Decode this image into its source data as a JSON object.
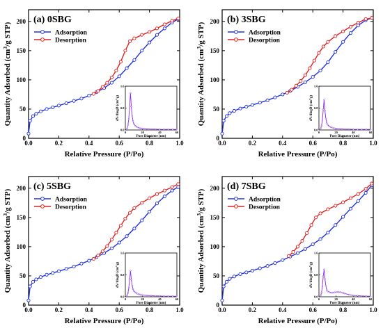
{
  "chart_data": [
    {
      "type": "line",
      "label": "(a) 0SBG",
      "xlabel": "Relative Pressure (P/Po)",
      "ylabel": "Quantity Adsorbed (cm³/g STP)",
      "xlim": [
        0,
        1.0
      ],
      "ylim": [
        0,
        220
      ],
      "xticks": [
        "0.0",
        "0.2",
        "0.4",
        "0.6",
        "0.8",
        "1.0"
      ],
      "yticks": [
        "0",
        "50",
        "100",
        "150",
        "200"
      ],
      "legend": "top-left",
      "series": [
        {
          "name": "Adsorption",
          "color": "#1f2fe0",
          "marker": "circle",
          "x": [
            0.0,
            0.01,
            0.03,
            0.05,
            0.08,
            0.12,
            0.16,
            0.2,
            0.25,
            0.3,
            0.35,
            0.4,
            0.45,
            0.5,
            0.55,
            0.6,
            0.65,
            0.7,
            0.75,
            0.8,
            0.85,
            0.9,
            0.95,
            0.99
          ],
          "y": [
            8,
            30,
            38,
            42,
            46,
            50,
            53,
            56,
            60,
            64,
            68,
            73,
            79,
            86,
            95,
            106,
            120,
            134,
            150,
            164,
            177,
            188,
            198,
            204
          ]
        },
        {
          "name": "Desorption",
          "color": "#e01f1f",
          "marker": "circle",
          "x": [
            0.99,
            0.95,
            0.9,
            0.85,
            0.8,
            0.75,
            0.7,
            0.67,
            0.64,
            0.61,
            0.58,
            0.55,
            0.52,
            0.49,
            0.46,
            0.43
          ],
          "y": [
            205,
            201,
            195,
            188,
            182,
            177,
            171,
            166,
            150,
            131,
            116,
            104,
            95,
            88,
            81,
            76
          ]
        }
      ],
      "inset": {
        "xlabel": "Pore Diameter (nm)",
        "ylabel": "dV/dlogD (cm³/g)",
        "xlim": [
          0,
          60
        ],
        "ylim": [
          0,
          1.6
        ],
        "xticks": [
          "0",
          "20",
          "40",
          "60"
        ],
        "yticks": [
          "0.0",
          "0.8",
          "1.6"
        ],
        "color": "#8a2be2",
        "x": [
          2,
          3,
          4,
          5,
          6,
          7,
          8,
          9,
          10,
          12,
          14,
          16,
          18,
          20,
          25,
          30,
          35,
          40,
          45,
          50,
          55,
          60
        ],
        "y": [
          0.05,
          0.18,
          0.4,
          0.9,
          1.35,
          0.85,
          0.5,
          0.32,
          0.22,
          0.14,
          0.1,
          0.07,
          0.06,
          0.05,
          0.04,
          0.03,
          0.03,
          0.02,
          0.02,
          0.02,
          0.02,
          0.02
        ]
      }
    },
    {
      "type": "line",
      "label": "(b) 3SBG",
      "xlabel": "Relative Pressure (P/Po)",
      "ylabel": "Quantity Adsorbed (cm³/g STP)",
      "xlim": [
        0,
        1.0
      ],
      "ylim": [
        0,
        220
      ],
      "xticks": [
        "0.0",
        "0.2",
        "0.4",
        "0.6",
        "0.8",
        "1.0"
      ],
      "yticks": [
        "0",
        "50",
        "100",
        "150",
        "200"
      ],
      "legend": "top-left",
      "series": [
        {
          "name": "Adsorption",
          "color": "#1f2fe0",
          "marker": "circle",
          "x": [
            0.0,
            0.01,
            0.03,
            0.05,
            0.08,
            0.12,
            0.16,
            0.2,
            0.25,
            0.3,
            0.35,
            0.4,
            0.45,
            0.5,
            0.55,
            0.6,
            0.65,
            0.7,
            0.75,
            0.8,
            0.85,
            0.9,
            0.95,
            0.99
          ],
          "y": [
            8,
            30,
            38,
            43,
            47,
            51,
            54,
            57,
            61,
            65,
            70,
            75,
            81,
            88,
            96,
            105,
            116,
            130,
            148,
            165,
            180,
            193,
            202,
            206
          ]
        },
        {
          "name": "Desorption",
          "color": "#e01f1f",
          "marker": "circle",
          "x": [
            0.99,
            0.95,
            0.9,
            0.85,
            0.8,
            0.75,
            0.7,
            0.67,
            0.64,
            0.61,
            0.58,
            0.55,
            0.52,
            0.49,
            0.46,
            0.43
          ],
          "y": [
            206,
            204,
            198,
            191,
            183,
            175,
            165,
            157,
            146,
            133,
            120,
            108,
            98,
            90,
            83,
            78
          ]
        }
      ],
      "inset": {
        "xlabel": "Pore Diameter (nm)",
        "ylabel": "dV/dlogD (cm³/g)",
        "xlim": [
          0,
          60
        ],
        "ylim": [
          0,
          1.6
        ],
        "xticks": [
          "0",
          "20",
          "40",
          "60"
        ],
        "yticks": [
          "0.0",
          "0.8",
          "1.6"
        ],
        "color": "#8a2be2",
        "x": [
          2,
          3,
          4,
          5,
          6,
          7,
          8,
          9,
          10,
          12,
          14,
          16,
          18,
          20,
          25,
          30,
          35,
          40,
          45,
          50,
          55,
          60
        ],
        "y": [
          0.05,
          0.15,
          0.35,
          0.75,
          1.1,
          0.7,
          0.42,
          0.28,
          0.2,
          0.13,
          0.1,
          0.08,
          0.06,
          0.05,
          0.04,
          0.03,
          0.03,
          0.02,
          0.02,
          0.02,
          0.02,
          0.02
        ]
      }
    },
    {
      "type": "line",
      "label": "(c) 5SBG",
      "xlabel": "Relative Pressure (P/Po)",
      "ylabel": "Quantity Adsorbed (cm³/g STP)",
      "xlim": [
        0,
        1.0
      ],
      "ylim": [
        0,
        220
      ],
      "xticks": [
        "0.0",
        "0.2",
        "0.4",
        "0.6",
        "0.8",
        "1.0"
      ],
      "yticks": [
        "0",
        "50",
        "100",
        "150",
        "200"
      ],
      "legend": "top-left",
      "series": [
        {
          "name": "Adsorption",
          "color": "#1f2fe0",
          "marker": "circle",
          "x": [
            0.0,
            0.01,
            0.03,
            0.05,
            0.08,
            0.12,
            0.16,
            0.2,
            0.25,
            0.3,
            0.35,
            0.4,
            0.45,
            0.5,
            0.55,
            0.6,
            0.65,
            0.7,
            0.75,
            0.8,
            0.85,
            0.9,
            0.95,
            0.99
          ],
          "y": [
            8,
            32,
            40,
            44,
            48,
            52,
            55,
            58,
            62,
            66,
            71,
            76,
            82,
            89,
            97,
            107,
            118,
            131,
            145,
            160,
            174,
            186,
            196,
            202
          ]
        },
        {
          "name": "Desorption",
          "color": "#e01f1f",
          "marker": "circle",
          "x": [
            0.99,
            0.95,
            0.9,
            0.85,
            0.8,
            0.75,
            0.7,
            0.67,
            0.64,
            0.61,
            0.58,
            0.55,
            0.52,
            0.49,
            0.46,
            0.43
          ],
          "y": [
            207,
            202,
            196,
            190,
            183,
            175,
            166,
            158,
            148,
            136,
            124,
            112,
            101,
            92,
            85,
            79
          ]
        }
      ],
      "inset": {
        "xlabel": "Pore Diameter (nm)",
        "ylabel": "dV/dlogD (cm³/g)",
        "xlim": [
          0,
          60
        ],
        "ylim": [
          0,
          1.6
        ],
        "xticks": [
          "0",
          "20",
          "40",
          "60"
        ],
        "yticks": [
          "0.0",
          "0.8",
          "1.6"
        ],
        "color": "#8a2be2",
        "x": [
          2,
          3,
          4,
          5,
          6,
          7,
          8,
          9,
          10,
          12,
          14,
          16,
          18,
          20,
          25,
          30,
          35,
          40,
          45,
          50,
          55,
          60
        ],
        "y": [
          0.05,
          0.14,
          0.32,
          0.65,
          0.95,
          0.62,
          0.4,
          0.28,
          0.21,
          0.15,
          0.11,
          0.09,
          0.07,
          0.06,
          0.05,
          0.04,
          0.03,
          0.03,
          0.02,
          0.02,
          0.02,
          0.02
        ]
      }
    },
    {
      "type": "line",
      "label": "(d) 7SBG",
      "xlabel": "Relative Pressure (P/Po)",
      "ylabel": "Quantity Adsorbed (cm³/g STP)",
      "xlim": [
        0,
        1.0
      ],
      "ylim": [
        0,
        220
      ],
      "xticks": [
        "0.0",
        "0.2",
        "0.4",
        "0.6",
        "0.8",
        "1.0"
      ],
      "yticks": [
        "0",
        "50",
        "100",
        "150",
        "200"
      ],
      "legend": "top-left",
      "series": [
        {
          "name": "Adsorption",
          "color": "#1f2fe0",
          "marker": "circle",
          "x": [
            0.0,
            0.01,
            0.03,
            0.05,
            0.08,
            0.12,
            0.16,
            0.2,
            0.25,
            0.3,
            0.35,
            0.4,
            0.45,
            0.5,
            0.55,
            0.6,
            0.65,
            0.7,
            0.75,
            0.8,
            0.85,
            0.9,
            0.95,
            0.99
          ],
          "y": [
            8,
            32,
            40,
            45,
            49,
            53,
            56,
            59,
            63,
            67,
            72,
            77,
            83,
            89,
            96,
            104,
            113,
            124,
            137,
            151,
            165,
            178,
            192,
            205
          ]
        },
        {
          "name": "Desorption",
          "color": "#e01f1f",
          "marker": "circle",
          "x": [
            0.99,
            0.95,
            0.9,
            0.85,
            0.8,
            0.75,
            0.7,
            0.65,
            0.62,
            0.59,
            0.56,
            0.53,
            0.5,
            0.47,
            0.44
          ],
          "y": [
            208,
            199,
            190,
            183,
            176,
            170,
            164,
            157,
            150,
            137,
            123,
            110,
            100,
            91,
            84
          ]
        }
      ],
      "inset": {
        "xlabel": "Pore Diameter (nm)",
        "ylabel": "dV/dlogD (cm³/g)",
        "xlim": [
          0,
          60
        ],
        "ylim": [
          0,
          1.6
        ],
        "xticks": [
          "0",
          "20",
          "40",
          "60"
        ],
        "yticks": [
          "0.0",
          "0.8",
          "1.6"
        ],
        "color": "#8a2be2",
        "x": [
          2,
          3,
          4,
          5,
          6,
          7,
          8,
          9,
          10,
          12,
          14,
          16,
          18,
          20,
          22,
          25,
          28,
          30,
          35,
          40,
          45,
          50,
          55,
          60
        ],
        "y": [
          0.05,
          0.15,
          0.38,
          0.75,
          1.0,
          0.65,
          0.4,
          0.27,
          0.2,
          0.17,
          0.15,
          0.15,
          0.16,
          0.17,
          0.18,
          0.17,
          0.14,
          0.12,
          0.08,
          0.05,
          0.04,
          0.03,
          0.02,
          0.02
        ]
      }
    }
  ]
}
